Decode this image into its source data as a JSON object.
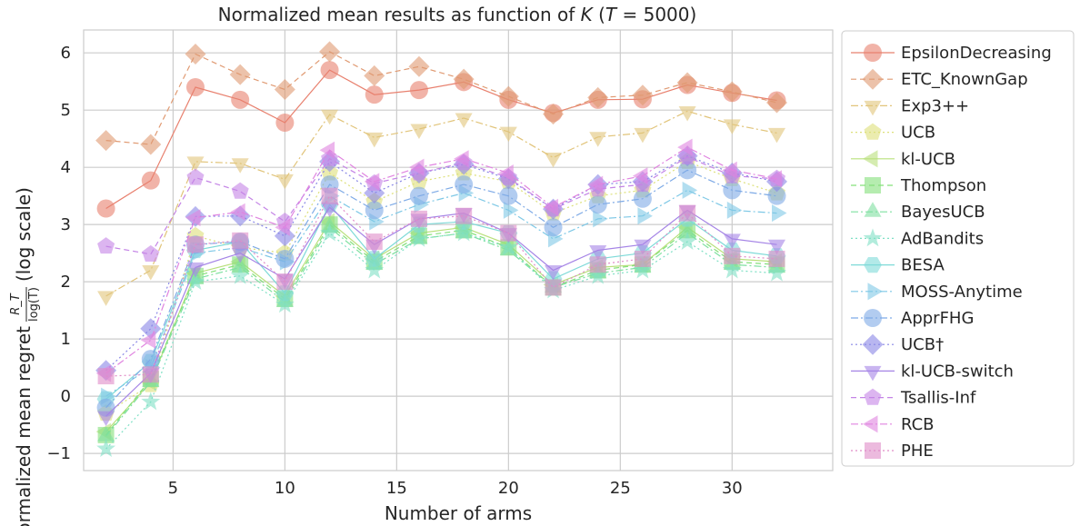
{
  "chart_data": {
    "type": "line",
    "title": "Normalized mean results as function of K (T = 5000)",
    "title_parts": {
      "prefix": "Normalized mean results as function of ",
      "k": "K",
      "open": " (",
      "t": "T",
      "eq": " = 5000)"
    },
    "xlabel": "Number of arms",
    "ylabel": "Normalized mean regret",
    "ylabel_frac_num": "R_T",
    "ylabel_frac_den": "log(T)",
    "ylabel_suffix": "(log scale)",
    "xlim": [
      1,
      34.5
    ],
    "ylim": [
      -1.3,
      6.4
    ],
    "xticks": [
      5,
      10,
      15,
      20,
      25,
      30
    ],
    "yticks": [
      -1,
      0,
      1,
      2,
      3,
      4,
      5,
      6
    ],
    "ytick_labels": [
      "−1",
      "0",
      "1",
      "2",
      "3",
      "4",
      "5",
      "6"
    ],
    "grid": true,
    "legend_position": "outside-right",
    "x": [
      2,
      4,
      6,
      8,
      10,
      12,
      14,
      16,
      18,
      20,
      22,
      24,
      26,
      28,
      30,
      32
    ],
    "series": [
      {
        "name": "EpsilonDecreasing",
        "color": "#e8806e",
        "marker": "circle",
        "dash": "solid",
        "values": [
          3.28,
          3.77,
          5.4,
          5.18,
          4.78,
          5.7,
          5.27,
          5.35,
          5.49,
          5.18,
          4.95,
          5.18,
          5.19,
          5.44,
          5.3,
          5.17
        ]
      },
      {
        "name": "ETC_KnownGap",
        "color": "#e09a72",
        "marker": "diamond",
        "dash": "dash",
        "values": [
          4.47,
          4.4,
          5.98,
          5.62,
          5.36,
          6.02,
          5.6,
          5.76,
          5.54,
          5.24,
          4.93,
          5.22,
          5.26,
          5.48,
          5.32,
          5.13
        ]
      },
      {
        "name": "Exp3++",
        "color": "#e1c47a",
        "marker": "triangle-down",
        "dash": "dashdot",
        "values": [
          1.75,
          2.2,
          4.1,
          4.07,
          3.79,
          4.92,
          4.52,
          4.67,
          4.86,
          4.62,
          4.17,
          4.53,
          4.6,
          4.98,
          4.75,
          4.6
        ]
      },
      {
        "name": "UCB",
        "color": "#dde07a",
        "marker": "pentagon",
        "dash": "dot",
        "values": [
          -0.3,
          0.2,
          2.8,
          2.6,
          2.5,
          3.9,
          3.4,
          3.75,
          3.9,
          3.75,
          3.2,
          3.5,
          3.6,
          4.1,
          3.8,
          3.55
        ]
      },
      {
        "name": "kl-UCB",
        "color": "#b9e07c",
        "marker": "triangle-left",
        "dash": "solid",
        "values": [
          -0.62,
          0.25,
          2.15,
          2.35,
          1.75,
          3.05,
          2.4,
          2.85,
          2.95,
          2.65,
          1.95,
          2.25,
          2.3,
          2.95,
          2.4,
          2.35
        ]
      },
      {
        "name": "Thompson",
        "color": "#84e07a",
        "marker": "square",
        "dash": "dash",
        "values": [
          -0.68,
          0.3,
          2.1,
          2.3,
          1.7,
          3.0,
          2.35,
          2.8,
          2.9,
          2.6,
          1.9,
          2.2,
          2.3,
          2.9,
          2.35,
          2.3
        ]
      },
      {
        "name": "BayesUCB",
        "color": "#7ee0a0",
        "marker": "triangle-up",
        "dash": "dashdot",
        "values": [
          -0.7,
          0.25,
          2.05,
          2.25,
          1.65,
          2.95,
          2.3,
          2.75,
          2.85,
          2.55,
          1.9,
          2.15,
          2.25,
          2.85,
          2.3,
          2.25
        ]
      },
      {
        "name": "AdBandits",
        "color": "#7ee0c4",
        "marker": "star",
        "dash": "dot",
        "values": [
          -0.92,
          -0.1,
          2.0,
          2.1,
          1.6,
          2.85,
          2.2,
          2.75,
          2.85,
          2.6,
          1.85,
          2.1,
          2.2,
          2.7,
          2.2,
          2.15
        ]
      },
      {
        "name": "BESA",
        "color": "#7edad8",
        "marker": "hexagon",
        "dash": "solid",
        "values": [
          -0.05,
          0.6,
          2.55,
          2.7,
          1.8,
          3.35,
          2.4,
          3.0,
          3.05,
          2.85,
          2.05,
          2.4,
          2.5,
          3.1,
          2.55,
          2.45
        ]
      },
      {
        "name": "MOSS-Anytime",
        "color": "#7ec8e6",
        "marker": "triangle-right",
        "dash": "dashdot",
        "values": [
          0.0,
          0.5,
          2.5,
          2.6,
          2.35,
          3.5,
          3.05,
          3.35,
          3.55,
          3.25,
          2.75,
          3.1,
          3.15,
          3.6,
          3.25,
          3.2
        ]
      },
      {
        "name": "ApprFHG",
        "color": "#7eaae6",
        "marker": "circle",
        "dash": "dashdot",
        "values": [
          -0.2,
          0.65,
          2.65,
          2.7,
          2.4,
          3.7,
          3.25,
          3.5,
          3.7,
          3.5,
          2.95,
          3.35,
          3.45,
          3.95,
          3.6,
          3.5
        ]
      },
      {
        "name": "UCB†",
        "color": "#8886e6",
        "marker": "diamond",
        "dash": "dot",
        "values": [
          0.45,
          1.18,
          3.14,
          3.15,
          2.8,
          4.1,
          3.55,
          3.9,
          4.05,
          3.8,
          3.27,
          3.7,
          3.75,
          4.2,
          3.9,
          3.75
        ]
      },
      {
        "name": "kl-UCB-switch",
        "color": "#a584e6",
        "marker": "triangle-down",
        "dash": "solid",
        "values": [
          -0.35,
          0.4,
          2.25,
          2.5,
          2.05,
          3.3,
          2.65,
          3.1,
          3.2,
          2.85,
          2.2,
          2.55,
          2.65,
          3.25,
          2.75,
          2.65
        ]
      },
      {
        "name": "Tsallis-Inf",
        "color": "#c484e6",
        "marker": "pentagon",
        "dash": "dash",
        "values": [
          2.62,
          2.48,
          3.82,
          3.58,
          3.05,
          4.15,
          3.72,
          3.9,
          4.08,
          3.82,
          3.27,
          3.62,
          3.7,
          4.18,
          3.85,
          3.8
        ]
      },
      {
        "name": "RCB",
        "color": "#e084e0",
        "marker": "triangle-left",
        "dash": "dashdot",
        "values": [
          0.4,
          0.98,
          3.12,
          3.22,
          2.95,
          4.3,
          3.75,
          4.0,
          4.15,
          3.9,
          3.3,
          3.7,
          3.85,
          4.35,
          3.95,
          3.8
        ]
      },
      {
        "name": "PHE",
        "color": "#e08cc8",
        "marker": "square",
        "dash": "dot",
        "values": [
          0.35,
          0.38,
          2.65,
          2.72,
          2.0,
          3.5,
          2.7,
          3.1,
          3.15,
          2.85,
          1.9,
          2.3,
          2.4,
          3.2,
          2.45,
          2.4
        ]
      }
    ]
  }
}
